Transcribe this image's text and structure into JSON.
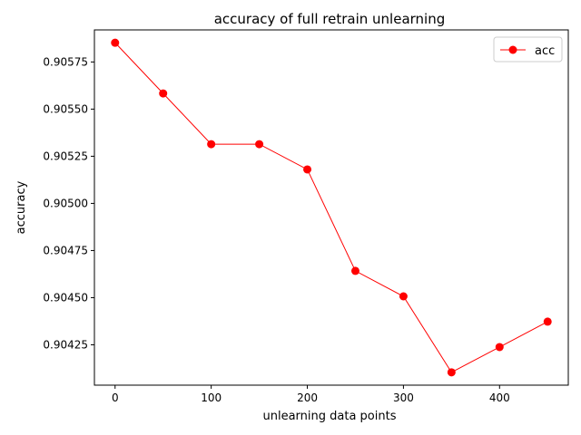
{
  "chart_data": {
    "type": "line",
    "title": "accuracy of full retrain unlearning",
    "xlabel": "unlearning data points",
    "ylabel": "accuracy",
    "x": [
      0,
      50,
      100,
      150,
      200,
      250,
      300,
      350,
      400,
      450
    ],
    "series": [
      {
        "name": "acc",
        "color": "#ff0000",
        "marker": "circle",
        "values": [
          0.905852,
          0.905583,
          0.905314,
          0.905314,
          0.90518,
          0.904642,
          0.904507,
          0.904104,
          0.904238,
          0.904373
        ]
      }
    ],
    "xlim": [
      -21.5,
      471.5
    ],
    "ylim": [
      0.904036,
      0.90592
    ],
    "xticks": [
      0,
      100,
      200,
      300,
      400
    ],
    "xtick_labels": [
      "0",
      "100",
      "200",
      "300",
      "400"
    ],
    "yticks": [
      0.90425,
      0.9045,
      0.90475,
      0.905,
      0.90525,
      0.9055,
      0.90575
    ],
    "ytick_labels": [
      "0.90425",
      "0.90450",
      "0.90475",
      "0.90500",
      "0.90525",
      "0.90550",
      "0.90575"
    ],
    "grid": false,
    "legend_position": "top-right"
  }
}
